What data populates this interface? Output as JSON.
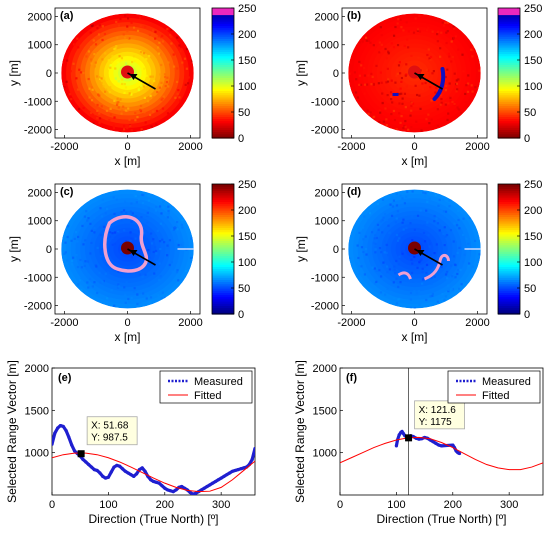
{
  "figure": {
    "panels": [
      {
        "label": "(a)",
        "kind": "polar_map",
        "colormap": "jet_reversed",
        "clim": [
          0,
          250
        ],
        "colorbar_ticks": [
          "0",
          "50",
          "100",
          "150",
          "200",
          "250"
        ],
        "xticks": [
          "-2000",
          "0",
          "2000"
        ],
        "yticks": [
          "-2000",
          "-1000",
          "0",
          "1000",
          "2000"
        ],
        "xlabel": "x [m]",
        "ylabel": "y [m]"
      },
      {
        "label": "(b)",
        "kind": "polar_map",
        "colormap": "jet_reversed",
        "clim": [
          0,
          250
        ],
        "colorbar_ticks": [
          "0",
          "50",
          "100",
          "150",
          "200",
          "250"
        ],
        "xticks": [
          "-2000",
          "0",
          "2000"
        ],
        "yticks": [
          "-2000",
          "-1000",
          "0",
          "1000",
          "2000"
        ],
        "xlabel": "x [m]",
        "ylabel": "y [m]"
      },
      {
        "label": "(c)",
        "kind": "polar_map",
        "colormap": "jet",
        "clim": [
          0,
          250
        ],
        "colorbar_ticks": [
          "0",
          "50",
          "100",
          "150",
          "200",
          "250"
        ],
        "xticks": [
          "-2000",
          "0",
          "2000"
        ],
        "yticks": [
          "-2000",
          "-1000",
          "0",
          "1000",
          "2000"
        ],
        "xlabel": "x [m]",
        "ylabel": "y [m]"
      },
      {
        "label": "(d)",
        "kind": "polar_map",
        "colormap": "jet",
        "clim": [
          0,
          250
        ],
        "colorbar_ticks": [
          "0",
          "50",
          "100",
          "150",
          "200",
          "250"
        ],
        "xticks": [
          "-2000",
          "0",
          "2000"
        ],
        "yticks": [
          "-2000",
          "-1000",
          "0",
          "1000",
          "2000"
        ],
        "xlabel": "x [m]",
        "ylabel": "y [m]"
      }
    ]
  },
  "chart_data": [
    {
      "type": "line",
      "label": "(e)",
      "xlabel": "Direction (True North) [º]",
      "ylabel": "Selected Range Vector [m]",
      "xlim": [
        0,
        360
      ],
      "ylim": [
        500,
        2000
      ],
      "xticks": [
        "0",
        "100",
        "200",
        "300"
      ],
      "yticks": [
        "1000",
        "1500",
        "2000"
      ],
      "legend": [
        "Measured",
        "Fitted"
      ],
      "legend_position": "top-right",
      "datatip": {
        "x": 51.68,
        "y": 987.5,
        "line1": "X: 51.68",
        "line2": "Y: 987.5"
      },
      "series": [
        {
          "name": "Measured",
          "style": "points",
          "color": "#1f1fd0",
          "x": [
            0,
            5,
            10,
            15,
            20,
            25,
            30,
            35,
            40,
            45,
            50,
            55,
            60,
            65,
            70,
            75,
            80,
            85,
            90,
            95,
            100,
            105,
            110,
            115,
            120,
            125,
            130,
            135,
            140,
            145,
            150,
            155,
            160,
            165,
            170,
            175,
            180,
            185,
            190,
            195,
            200,
            205,
            210,
            215,
            220,
            225,
            230,
            235,
            240,
            245,
            250,
            255,
            260,
            265,
            270,
            275,
            280,
            285,
            290,
            295,
            300,
            305,
            310,
            315,
            320,
            325,
            330,
            335,
            340,
            345,
            350,
            355,
            360
          ],
          "y": [
            1100,
            1230,
            1290,
            1320,
            1310,
            1260,
            1180,
            1090,
            1020,
            990,
            960,
            920,
            890,
            860,
            830,
            800,
            790,
            760,
            720,
            700,
            710,
            770,
            830,
            850,
            840,
            810,
            780,
            760,
            740,
            720,
            750,
            800,
            820,
            780,
            720,
            680,
            660,
            650,
            640,
            610,
            580,
            560,
            550,
            540,
            560,
            590,
            600,
            580,
            560,
            530,
            510,
            520,
            540,
            560,
            580,
            600,
            620,
            640,
            660,
            680,
            700,
            720,
            740,
            760,
            780,
            790,
            800,
            810,
            820,
            830,
            860,
            920,
            1050
          ]
        },
        {
          "name": "Fitted",
          "style": "line",
          "color": "#ff0000",
          "x": [
            0,
            20,
            40,
            60,
            80,
            100,
            120,
            140,
            160,
            180,
            200,
            220,
            240,
            260,
            280,
            300,
            320,
            340,
            360
          ],
          "y": [
            940,
            976,
            995,
            995,
            976,
            940,
            890,
            830,
            765,
            700,
            640,
            590,
            555,
            540,
            545,
            590,
            680,
            790,
            900
          ]
        }
      ]
    },
    {
      "type": "line",
      "label": "(f)",
      "xlabel": "Direction (True North) [º]",
      "ylabel": "Selected Range Vector [m]",
      "xlim": [
        0,
        360
      ],
      "ylim": [
        500,
        2000
      ],
      "xticks": [
        "0",
        "100",
        "200",
        "300"
      ],
      "yticks": [
        "1000",
        "1500",
        "2000"
      ],
      "legend": [
        "Measured",
        "Fitted"
      ],
      "legend_position": "top-right",
      "datatip": {
        "x": 121.6,
        "y": 1175,
        "line1": "X: 121.6",
        "line2": "Y: 1175"
      },
      "series": [
        {
          "name": "Measured",
          "style": "points",
          "color": "#1f1fd0",
          "x": [
            100,
            102,
            105,
            108,
            110,
            112,
            115,
            118,
            121.6,
            125,
            130,
            135,
            140,
            145,
            150,
            155,
            160,
            165,
            170,
            175,
            180,
            200,
            203,
            206,
            209,
            212
          ],
          "y": [
            1080,
            1150,
            1210,
            1240,
            1250,
            1230,
            1200,
            1190,
            1175,
            1200,
            1190,
            1170,
            1160,
            1165,
            1180,
            1170,
            1150,
            1130,
            1110,
            1090,
            1080,
            1090,
            1060,
            1020,
            1000,
            990
          ]
        },
        {
          "name": "Fitted",
          "style": "line",
          "color": "#ff0000",
          "x": [
            0,
            20,
            40,
            60,
            80,
            100,
            120,
            140,
            160,
            180,
            200,
            220,
            240,
            260,
            280,
            300,
            320,
            340,
            360
          ],
          "y": [
            880,
            940,
            1000,
            1060,
            1110,
            1150,
            1175,
            1180,
            1165,
            1120,
            1060,
            990,
            920,
            860,
            820,
            800,
            800,
            830,
            880
          ]
        }
      ]
    }
  ]
}
